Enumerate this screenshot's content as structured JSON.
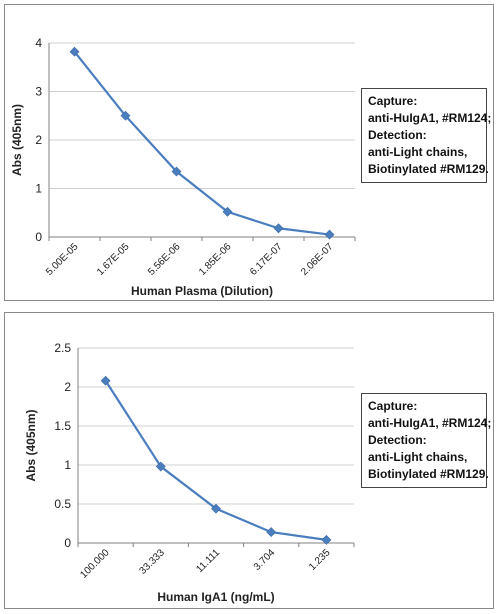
{
  "chart_data": [
    {
      "type": "line",
      "categories": [
        "5.00E-05",
        "1.67E-05",
        "5.56E-06",
        "1.85E-06",
        "6.17E-07",
        "2.06E-07"
      ],
      "values": [
        3.82,
        2.5,
        1.35,
        0.52,
        0.18,
        0.05
      ],
      "title": "",
      "xlabel": "Human Plasma (Dilution)",
      "ylabel": "Abs (405nm)",
      "ylim": [
        0,
        4
      ],
      "yticks": [
        "0",
        "1",
        "2",
        "3",
        "4"
      ],
      "grid": true,
      "annotation": [
        "Capture:",
        "anti-HuIgA1, #RM124;",
        "Detection:",
        "anti-Light chains,",
        "Biotinylated #RM129."
      ],
      "color": "#4a7ebf"
    },
    {
      "type": "line",
      "categories": [
        "100.000",
        "33.333",
        "11.111",
        "3.704",
        "1.235"
      ],
      "values": [
        2.08,
        0.98,
        0.44,
        0.14,
        0.04
      ],
      "title": "",
      "xlabel": "Human IgA1 (ng/mL)",
      "ylabel": "Abs (405nm)",
      "ylim": [
        0,
        2.5
      ],
      "yticks": [
        "0",
        "0.5",
        "1",
        "1.5",
        "2",
        "2.5"
      ],
      "grid": true,
      "annotation": [
        "Capture:",
        "anti-HuIgA1, #RM124;",
        "Detection:",
        "anti-Light chains,",
        "Biotinylated #RM129."
      ],
      "color": "#4a7ebf"
    }
  ]
}
